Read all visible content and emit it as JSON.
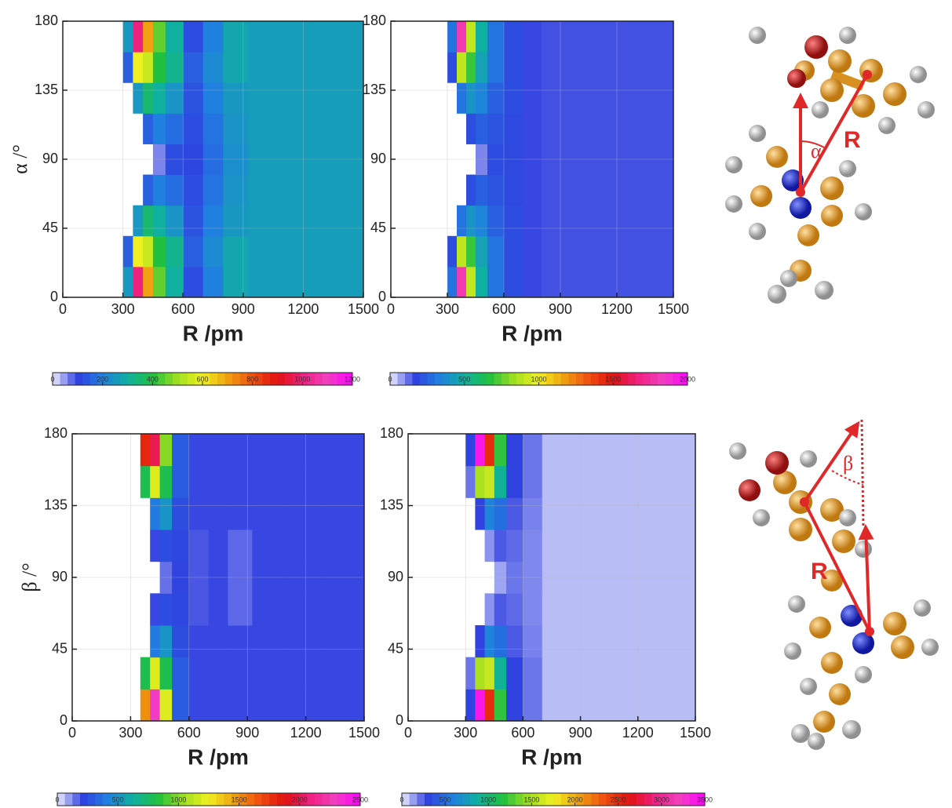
{
  "chart_data": [
    {
      "type": "contour",
      "xlabel": "R /pm",
      "ylabel": "α /°",
      "xlim": [
        0,
        1500
      ],
      "xticks": [
        0,
        300,
        600,
        900,
        1200,
        1500
      ],
      "ylim": [
        0,
        180
      ],
      "yticks": [
        0,
        45,
        90,
        135,
        180
      ],
      "grid": true,
      "clim": [
        0,
        1200
      ],
      "cticks": [
        0,
        200,
        400,
        600,
        800,
        1000,
        1200
      ],
      "colormap": [
        "#ececff",
        "#3040e0",
        "#2080e0",
        "#10b0a0",
        "#20c040",
        "#a0e020",
        "#f0f020",
        "#f0a010",
        "#f05010",
        "#e01010",
        "#f02080",
        "#f040c0",
        "#ff00ff"
      ],
      "x": [
        325,
        375,
        425,
        475,
        550,
        650,
        750,
        850,
        1000,
        1200,
        1400
      ],
      "y": [
        10,
        30,
        50,
        70,
        90,
        110,
        130,
        150,
        170
      ],
      "z": [
        [
          250,
          1000,
          700,
          450,
          300,
          120,
          200,
          280,
          260,
          260,
          260
        ],
        [
          150,
          600,
          550,
          400,
          320,
          150,
          220,
          280,
          260,
          260,
          260
        ],
        [
          null,
          250,
          350,
          300,
          240,
          130,
          200,
          250,
          260,
          260,
          260
        ],
        [
          null,
          null,
          150,
          200,
          170,
          120,
          180,
          240,
          260,
          260,
          260
        ],
        [
          null,
          null,
          null,
          60,
          120,
          110,
          170,
          230,
          260,
          260,
          260
        ],
        [
          null,
          null,
          150,
          200,
          170,
          120,
          180,
          240,
          260,
          260,
          260
        ],
        [
          null,
          250,
          350,
          300,
          240,
          130,
          200,
          250,
          260,
          260,
          260
        ],
        [
          150,
          600,
          550,
          400,
          320,
          150,
          220,
          280,
          260,
          260,
          260
        ],
        [
          250,
          1000,
          700,
          450,
          300,
          120,
          200,
          280,
          260,
          260,
          260
        ]
      ]
    },
    {
      "type": "contour",
      "xlabel": "R /pm",
      "xlim": [
        0,
        1500
      ],
      "xticks": [
        0,
        300,
        600,
        900,
        1200,
        1500
      ],
      "ylim": [
        0,
        180
      ],
      "yticks": [
        0,
        45,
        90,
        135,
        180
      ],
      "grid": true,
      "clim": [
        0,
        2000
      ],
      "cticks": [
        0,
        500,
        1000,
        1500,
        2000
      ],
      "colormap": [
        "#ececff",
        "#3040e0",
        "#2080e0",
        "#10b0a0",
        "#20c040",
        "#a0e020",
        "#f0f020",
        "#f0a010",
        "#f05010",
        "#e01010",
        "#f02080",
        "#f040c0",
        "#ff00ff"
      ],
      "x": [
        325,
        375,
        425,
        475,
        550,
        650,
        750,
        850,
        1000,
        1200,
        1400
      ],
      "y": [
        10,
        30,
        50,
        70,
        90,
        110,
        130,
        150,
        170
      ],
      "z": [
        [
          300,
          1800,
          900,
          500,
          300,
          200,
          160,
          150,
          150,
          150,
          150
        ],
        [
          200,
          900,
          700,
          450,
          300,
          200,
          160,
          150,
          150,
          150,
          150
        ],
        [
          null,
          300,
          400,
          350,
          250,
          200,
          160,
          150,
          150,
          150,
          150
        ],
        [
          null,
          null,
          200,
          250,
          220,
          190,
          160,
          150,
          150,
          150,
          150
        ],
        [
          null,
          null,
          null,
          100,
          200,
          190,
          160,
          150,
          150,
          150,
          150
        ],
        [
          null,
          null,
          200,
          250,
          220,
          190,
          160,
          150,
          150,
          150,
          150
        ],
        [
          null,
          300,
          400,
          350,
          250,
          200,
          160,
          150,
          150,
          150,
          150
        ],
        [
          200,
          900,
          700,
          450,
          300,
          200,
          160,
          150,
          150,
          150,
          150
        ],
        [
          300,
          1800,
          900,
          500,
          300,
          200,
          160,
          150,
          150,
          150,
          150
        ]
      ]
    },
    {
      "type": "contour",
      "xlabel": "R /pm",
      "ylabel": "β /°",
      "xlim": [
        0,
        1500
      ],
      "xticks": [
        0,
        300,
        600,
        900,
        1200,
        1500
      ],
      "ylim": [
        0,
        180
      ],
      "yticks": [
        0,
        45,
        90,
        135,
        180
      ],
      "grid": true,
      "clim": [
        0,
        2500
      ],
      "cticks": [
        0,
        500,
        1000,
        1500,
        2000,
        2500
      ],
      "colormap": [
        "#ececff",
        "#3040e0",
        "#2080e0",
        "#10b0a0",
        "#20c040",
        "#a0e020",
        "#f0f020",
        "#f0a010",
        "#f05010",
        "#e01010",
        "#f02080",
        "#f040c0",
        "#ff00ff"
      ],
      "x": [
        325,
        375,
        425,
        475,
        550,
        650,
        750,
        850,
        1000,
        1200,
        1400
      ],
      "y": [
        10,
        30,
        50,
        70,
        90,
        110,
        130,
        150,
        170
      ],
      "z": [
        [
          null,
          1500,
          2300,
          1200,
          300,
          200,
          200,
          200,
          200,
          200,
          200
        ],
        [
          null,
          800,
          1200,
          800,
          300,
          200,
          200,
          200,
          200,
          200,
          200
        ],
        [
          null,
          null,
          400,
          500,
          250,
          200,
          200,
          200,
          200,
          200,
          200
        ],
        [
          null,
          null,
          200,
          250,
          230,
          180,
          200,
          160,
          200,
          200,
          200
        ],
        [
          null,
          null,
          null,
          150,
          220,
          180,
          200,
          160,
          200,
          200,
          200
        ],
        [
          null,
          null,
          200,
          250,
          230,
          180,
          200,
          160,
          200,
          200,
          200
        ],
        [
          null,
          null,
          400,
          500,
          250,
          200,
          200,
          200,
          200,
          200,
          200
        ],
        [
          null,
          800,
          1200,
          800,
          300,
          200,
          200,
          200,
          200,
          200,
          200
        ],
        [
          null,
          1800,
          2000,
          1000,
          300,
          200,
          200,
          200,
          200,
          200,
          200
        ]
      ]
    },
    {
      "type": "contour",
      "xlabel": "R /pm",
      "xlim": [
        0,
        1500
      ],
      "xticks": [
        0,
        300,
        600,
        900,
        1200,
        1500
      ],
      "ylim": [
        0,
        180
      ],
      "yticks": [
        0,
        45,
        90,
        135,
        180
      ],
      "grid": true,
      "clim": [
        0,
        3500
      ],
      "cticks": [
        0,
        500,
        1000,
        1500,
        2000,
        2500,
        3000,
        3500
      ],
      "colormap": [
        "#ececff",
        "#3040e0",
        "#2080e0",
        "#10b0a0",
        "#20c040",
        "#a0e020",
        "#f0f020",
        "#f0a010",
        "#f05010",
        "#e01010",
        "#f02080",
        "#f040c0",
        "#ff00ff"
      ],
      "x": [
        325,
        375,
        425,
        475,
        550,
        650,
        750,
        850,
        1000,
        1200,
        1400
      ],
      "y": [
        10,
        30,
        50,
        70,
        90,
        110,
        130,
        150,
        170
      ],
      "z": [
        [
          300,
          3400,
          2500,
          1200,
          300,
          200,
          80,
          80,
          80,
          80,
          80
        ],
        [
          200,
          1500,
          1600,
          900,
          300,
          200,
          80,
          80,
          80,
          80,
          80
        ],
        [
          null,
          300,
          600,
          500,
          250,
          180,
          80,
          80,
          80,
          80,
          80
        ],
        [
          null,
          null,
          150,
          250,
          220,
          170,
          80,
          80,
          80,
          80,
          80
        ],
        [
          null,
          null,
          null,
          120,
          200,
          170,
          80,
          80,
          80,
          80,
          80
        ],
        [
          null,
          null,
          150,
          250,
          220,
          170,
          80,
          80,
          80,
          80,
          80
        ],
        [
          null,
          300,
          600,
          500,
          250,
          180,
          80,
          80,
          80,
          80,
          80
        ],
        [
          200,
          1500,
          1600,
          900,
          300,
          200,
          80,
          80,
          80,
          80,
          80
        ],
        [
          300,
          3400,
          2500,
          1200,
          300,
          200,
          80,
          80,
          80,
          80,
          80
        ]
      ]
    }
  ],
  "diagram_labels": {
    "top_r": "R",
    "top_angle": "α",
    "bottom_r": "R",
    "bottom_angle": "β"
  }
}
